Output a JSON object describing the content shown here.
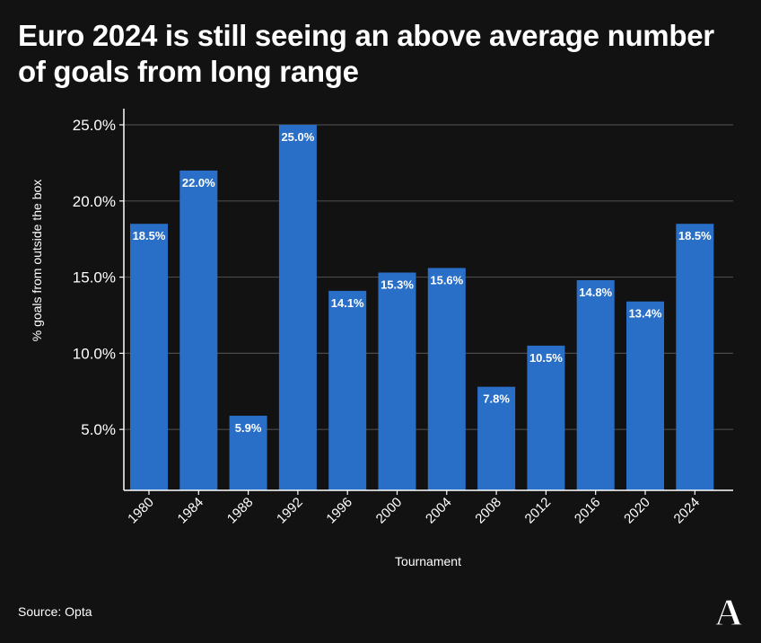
{
  "title": "Euro 2024 is still seeing an above average number of goals from long range",
  "source": "Source: Opta",
  "logo_letter": "A",
  "colors": {
    "background": "#121212",
    "bar": "#2a6fc7",
    "grid": "#4a4a4a",
    "text": "#ffffff"
  },
  "chart_data": {
    "type": "bar",
    "title": "Euro 2024 is still seeing an above average number of goals from long range",
    "xlabel": "Tournament",
    "ylabel": "% goals from outside the box",
    "categories": [
      "1980",
      "1984",
      "1988",
      "1992",
      "1996",
      "2000",
      "2004",
      "2008",
      "2012",
      "2016",
      "2020",
      "2024"
    ],
    "values": [
      18.5,
      22.0,
      5.9,
      25.0,
      14.1,
      15.3,
      15.6,
      7.8,
      10.5,
      14.8,
      13.4,
      18.5
    ],
    "data_labels": [
      "18.5%",
      "22.0%",
      "5.9%",
      "25.0%",
      "14.1%",
      "15.3%",
      "15.6%",
      "7.8%",
      "10.5%",
      "14.8%",
      "13.4%",
      "18.5%"
    ],
    "yticks": [
      5,
      10,
      15,
      20,
      25
    ],
    "ytick_labels": [
      "5.0%",
      "10.0%",
      "15.0%",
      "20.0%",
      "25.0%"
    ],
    "ylim": [
      1.0,
      25.0
    ],
    "grid": true,
    "legend": "none"
  }
}
